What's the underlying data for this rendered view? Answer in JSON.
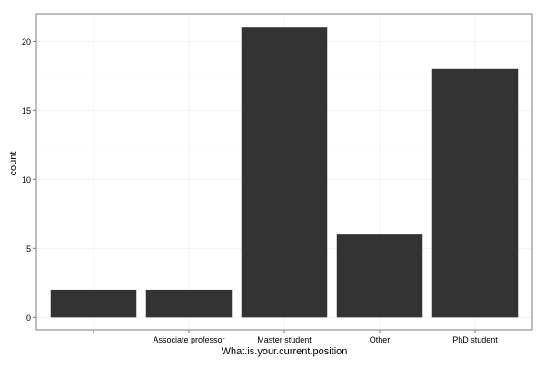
{
  "chart_data": {
    "type": "bar",
    "categories": [
      "",
      "Associate professor",
      "Master student",
      "Other",
      "PhD student"
    ],
    "values": [
      2,
      2,
      21,
      6,
      18
    ],
    "xlabel": "What.is.your.current.position",
    "ylabel": "count",
    "ylim": [
      -0.9,
      22.0
    ],
    "yticks": [
      0,
      5,
      10,
      15,
      20
    ],
    "grid": true,
    "colors": {
      "bar": "#333333",
      "panel_border": "#7f7f7f",
      "grid_major": "#f0f0f0",
      "grid_minor": "#fafafa",
      "tick_text": "#000000",
      "axis_title": "#000000"
    }
  }
}
